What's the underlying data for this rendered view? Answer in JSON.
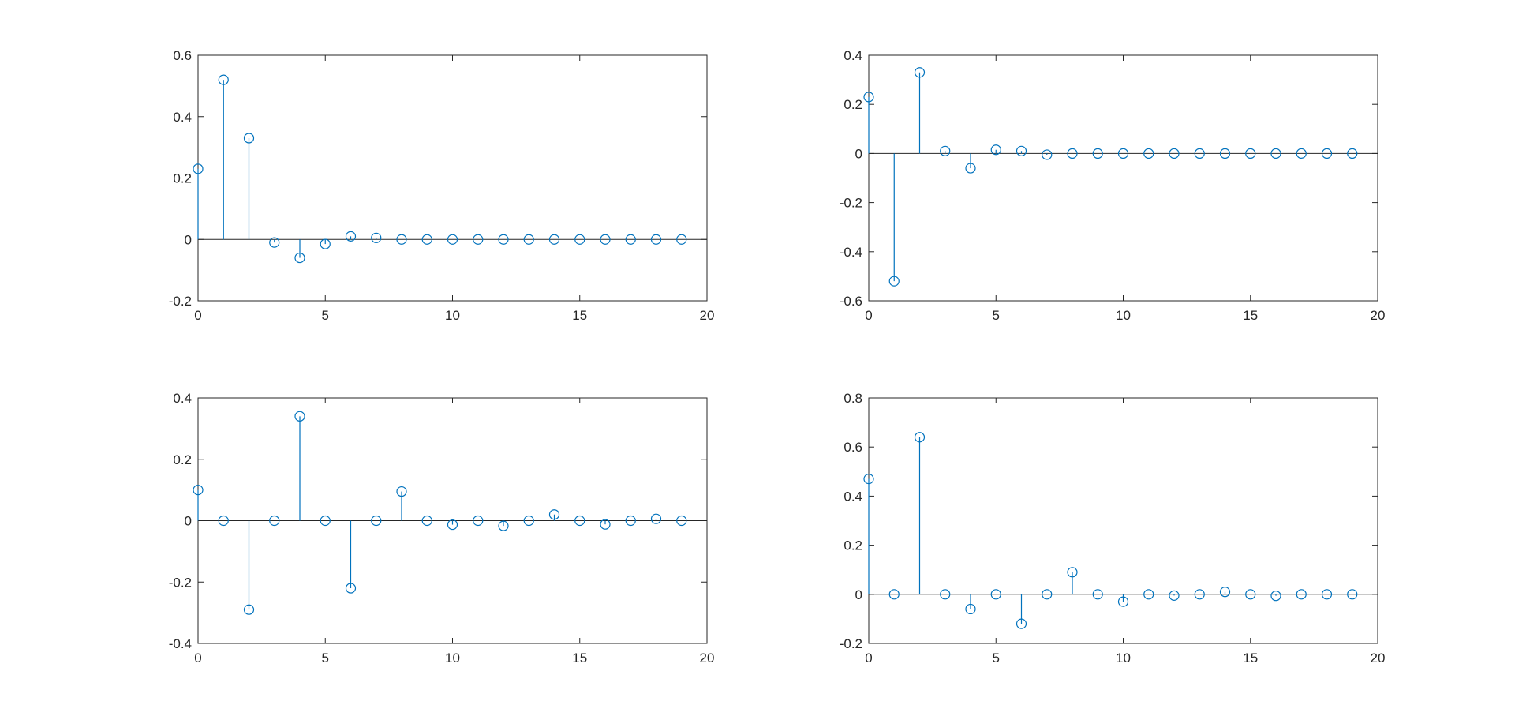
{
  "chart_data": [
    {
      "type": "stem",
      "title": "",
      "xlabel": "",
      "ylabel": "",
      "xlim": [
        0,
        20
      ],
      "ylim": [
        -0.2,
        0.6
      ],
      "xticks": [
        0,
        5,
        10,
        15,
        20
      ],
      "xtick_labels": [
        "0",
        "5",
        "10",
        "15",
        "20"
      ],
      "yticks": [
        -0.2,
        0,
        0.2,
        0.4,
        0.6
      ],
      "ytick_labels": [
        "-0.2",
        "0",
        "0.2",
        "0.4",
        "0.6"
      ],
      "grid": false,
      "color": "#0072BD",
      "series": [
        {
          "x": [
            0,
            1,
            2,
            3,
            4,
            5,
            6,
            7,
            8,
            9,
            10,
            11,
            12,
            13,
            14,
            15,
            16,
            17,
            18,
            19
          ],
          "values": [
            0.23,
            0.52,
            0.33,
            -0.01,
            -0.06,
            -0.015,
            0.01,
            0.005,
            0,
            0,
            0,
            0,
            0,
            0,
            0,
            0,
            0,
            0,
            0,
            0
          ]
        }
      ]
    },
    {
      "type": "stem",
      "title": "",
      "xlabel": "",
      "ylabel": "",
      "xlim": [
        0,
        20
      ],
      "ylim": [
        -0.6,
        0.4
      ],
      "xticks": [
        0,
        5,
        10,
        15,
        20
      ],
      "xtick_labels": [
        "0",
        "5",
        "10",
        "15",
        "20"
      ],
      "yticks": [
        -0.6,
        -0.4,
        -0.2,
        0,
        0.2,
        0.4
      ],
      "ytick_labels": [
        "-0.6",
        "-0.4",
        "-0.2",
        "0",
        "0.2",
        "0.4"
      ],
      "grid": false,
      "color": "#0072BD",
      "series": [
        {
          "x": [
            0,
            1,
            2,
            3,
            4,
            5,
            6,
            7,
            8,
            9,
            10,
            11,
            12,
            13,
            14,
            15,
            16,
            17,
            18,
            19
          ],
          "values": [
            0.23,
            -0.52,
            0.33,
            0.01,
            -0.06,
            0.015,
            0.01,
            -0.005,
            0,
            0,
            0,
            0,
            0,
            0,
            0,
            0,
            0,
            0,
            0,
            0
          ]
        }
      ]
    },
    {
      "type": "stem",
      "title": "",
      "xlabel": "",
      "ylabel": "",
      "xlim": [
        0,
        20
      ],
      "ylim": [
        -0.4,
        0.4
      ],
      "xticks": [
        0,
        5,
        10,
        15,
        20
      ],
      "xtick_labels": [
        "0",
        "5",
        "10",
        "15",
        "20"
      ],
      "yticks": [
        -0.4,
        -0.2,
        0,
        0.2,
        0.4
      ],
      "ytick_labels": [
        "-0.4",
        "-0.2",
        "0",
        "0.2",
        "0.4"
      ],
      "grid": false,
      "color": "#0072BD",
      "series": [
        {
          "x": [
            0,
            1,
            2,
            3,
            4,
            5,
            6,
            7,
            8,
            9,
            10,
            11,
            12,
            13,
            14,
            15,
            16,
            17,
            18,
            19
          ],
          "values": [
            0.1,
            0,
            -0.29,
            0,
            0.34,
            0,
            -0.22,
            0,
            0.095,
            0,
            -0.013,
            0,
            -0.017,
            0,
            0.02,
            0,
            -0.012,
            0,
            0.006,
            0
          ]
        }
      ]
    },
    {
      "type": "stem",
      "title": "",
      "xlabel": "",
      "ylabel": "",
      "xlim": [
        0,
        20
      ],
      "ylim": [
        -0.2,
        0.8
      ],
      "xticks": [
        0,
        5,
        10,
        15,
        20
      ],
      "xtick_labels": [
        "0",
        "5",
        "10",
        "15",
        "20"
      ],
      "yticks": [
        -0.2,
        0,
        0.2,
        0.4,
        0.6,
        0.8
      ],
      "ytick_labels": [
        "-0.2",
        "0",
        "0.2",
        "0.4",
        "0.6",
        "0.8"
      ],
      "grid": false,
      "color": "#0072BD",
      "series": [
        {
          "x": [
            0,
            1,
            2,
            3,
            4,
            5,
            6,
            7,
            8,
            9,
            10,
            11,
            12,
            13,
            14,
            15,
            16,
            17,
            18,
            19
          ],
          "values": [
            0.47,
            0,
            0.64,
            0,
            -0.06,
            0,
            -0.12,
            0,
            0.09,
            0,
            -0.03,
            0,
            -0.005,
            0,
            0.01,
            0,
            -0.006,
            0,
            0,
            0
          ]
        }
      ]
    }
  ]
}
